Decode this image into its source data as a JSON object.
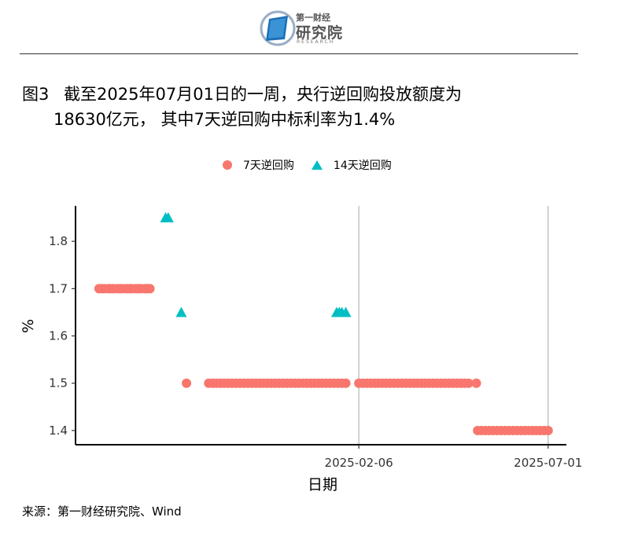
{
  "logo": {
    "name_small": "第一财经",
    "name_big": "研究院",
    "name_en": "RESEARCH"
  },
  "figure": {
    "label": "图3",
    "title_line1": "截至2025年07月01日的一周，央行逆回购投放额度为",
    "title_line2": "18630亿元， 其中7天逆回购中标利率为1.4%"
  },
  "legend": {
    "series7": "7天逆回购",
    "series14": "14天逆回购"
  },
  "colors": {
    "series7": "#f8766d",
    "series14": "#00bfc4"
  },
  "source": "来源：第一财经研究院、Wind",
  "chart_data": {
    "type": "scatter",
    "xlabel": "日期",
    "ylabel": "%",
    "x_ticks": [
      "2025-02-06",
      "2025-07-01"
    ],
    "xlim": [
      "2024-07-04",
      "2025-07-15"
    ],
    "ylim": [
      1.37,
      1.875
    ],
    "y_ticks": [
      1.4,
      1.5,
      1.6,
      1.7,
      1.8
    ],
    "grid": "vertical lines at x ticks",
    "legend_position": "top",
    "series": [
      {
        "name": "7天逆回购",
        "marker": "circle",
        "points": [
          [
            "2024-07-22",
            1.7
          ],
          [
            "2024-07-24",
            1.7
          ],
          [
            "2024-07-26",
            1.7
          ],
          [
            "2024-07-29",
            1.7
          ],
          [
            "2024-07-31",
            1.7
          ],
          [
            "2024-08-02",
            1.7
          ],
          [
            "2024-08-05",
            1.7
          ],
          [
            "2024-08-07",
            1.7
          ],
          [
            "2024-08-09",
            1.7
          ],
          [
            "2024-08-12",
            1.7
          ],
          [
            "2024-08-14",
            1.7
          ],
          [
            "2024-08-16",
            1.7
          ],
          [
            "2024-08-19",
            1.7
          ],
          [
            "2024-08-21",
            1.7
          ],
          [
            "2024-08-23",
            1.7
          ],
          [
            "2024-08-26",
            1.7
          ],
          [
            "2024-08-28",
            1.7
          ],
          [
            "2024-08-30",
            1.7
          ],
          [
            "2024-09-27",
            1.5
          ],
          [
            "2024-10-14",
            1.5
          ],
          [
            "2024-10-17",
            1.5
          ],
          [
            "2024-10-20",
            1.5
          ],
          [
            "2024-10-23",
            1.5
          ],
          [
            "2024-10-26",
            1.5
          ],
          [
            "2024-10-29",
            1.5
          ],
          [
            "2024-11-01",
            1.5
          ],
          [
            "2024-11-04",
            1.5
          ],
          [
            "2024-11-07",
            1.5
          ],
          [
            "2024-11-10",
            1.5
          ],
          [
            "2024-11-13",
            1.5
          ],
          [
            "2024-11-16",
            1.5
          ],
          [
            "2024-11-19",
            1.5
          ],
          [
            "2024-11-22",
            1.5
          ],
          [
            "2024-11-25",
            1.5
          ],
          [
            "2024-11-28",
            1.5
          ],
          [
            "2024-12-01",
            1.5
          ],
          [
            "2024-12-04",
            1.5
          ],
          [
            "2024-12-07",
            1.5
          ],
          [
            "2024-12-10",
            1.5
          ],
          [
            "2024-12-13",
            1.5
          ],
          [
            "2024-12-16",
            1.5
          ],
          [
            "2024-12-19",
            1.5
          ],
          [
            "2024-12-22",
            1.5
          ],
          [
            "2024-12-25",
            1.5
          ],
          [
            "2024-12-28",
            1.5
          ],
          [
            "2024-12-31",
            1.5
          ],
          [
            "2025-01-03",
            1.5
          ],
          [
            "2025-01-06",
            1.5
          ],
          [
            "2025-01-09",
            1.5
          ],
          [
            "2025-01-12",
            1.5
          ],
          [
            "2025-01-15",
            1.5
          ],
          [
            "2025-01-18",
            1.5
          ],
          [
            "2025-01-21",
            1.5
          ],
          [
            "2025-01-24",
            1.5
          ],
          [
            "2025-01-27",
            1.5
          ],
          [
            "2025-02-06",
            1.5
          ],
          [
            "2025-02-09",
            1.5
          ],
          [
            "2025-02-12",
            1.5
          ],
          [
            "2025-02-15",
            1.5
          ],
          [
            "2025-02-18",
            1.5
          ],
          [
            "2025-02-21",
            1.5
          ],
          [
            "2025-02-24",
            1.5
          ],
          [
            "2025-02-27",
            1.5
          ],
          [
            "2025-03-02",
            1.5
          ],
          [
            "2025-03-05",
            1.5
          ],
          [
            "2025-03-08",
            1.5
          ],
          [
            "2025-03-11",
            1.5
          ],
          [
            "2025-03-14",
            1.5
          ],
          [
            "2025-03-17",
            1.5
          ],
          [
            "2025-03-20",
            1.5
          ],
          [
            "2025-03-23",
            1.5
          ],
          [
            "2025-03-26",
            1.5
          ],
          [
            "2025-03-29",
            1.5
          ],
          [
            "2025-04-01",
            1.5
          ],
          [
            "2025-04-04",
            1.5
          ],
          [
            "2025-04-07",
            1.5
          ],
          [
            "2025-04-10",
            1.5
          ],
          [
            "2025-04-13",
            1.5
          ],
          [
            "2025-04-16",
            1.5
          ],
          [
            "2025-04-19",
            1.5
          ],
          [
            "2025-04-22",
            1.5
          ],
          [
            "2025-04-25",
            1.5
          ],
          [
            "2025-04-28",
            1.5
          ],
          [
            "2025-05-01",
            1.5
          ],
          [
            "2025-05-07",
            1.5
          ],
          [
            "2025-05-08",
            1.4
          ],
          [
            "2025-05-11",
            1.4
          ],
          [
            "2025-05-14",
            1.4
          ],
          [
            "2025-05-17",
            1.4
          ],
          [
            "2025-05-20",
            1.4
          ],
          [
            "2025-05-23",
            1.4
          ],
          [
            "2025-05-26",
            1.4
          ],
          [
            "2025-05-29",
            1.4
          ],
          [
            "2025-06-01",
            1.4
          ],
          [
            "2025-06-04",
            1.4
          ],
          [
            "2025-06-07",
            1.4
          ],
          [
            "2025-06-10",
            1.4
          ],
          [
            "2025-06-13",
            1.4
          ],
          [
            "2025-06-16",
            1.4
          ],
          [
            "2025-06-19",
            1.4
          ],
          [
            "2025-06-22",
            1.4
          ],
          [
            "2025-06-25",
            1.4
          ],
          [
            "2025-06-28",
            1.4
          ],
          [
            "2025-07-01",
            1.4
          ]
        ]
      },
      {
        "name": "14天逆回购",
        "marker": "triangle",
        "points": [
          [
            "2024-09-11",
            1.85
          ],
          [
            "2024-09-13",
            1.85
          ],
          [
            "2024-09-23",
            1.65
          ],
          [
            "2025-01-20",
            1.65
          ],
          [
            "2025-01-22",
            1.65
          ],
          [
            "2025-01-24",
            1.65
          ],
          [
            "2025-01-27",
            1.65
          ]
        ]
      }
    ]
  }
}
